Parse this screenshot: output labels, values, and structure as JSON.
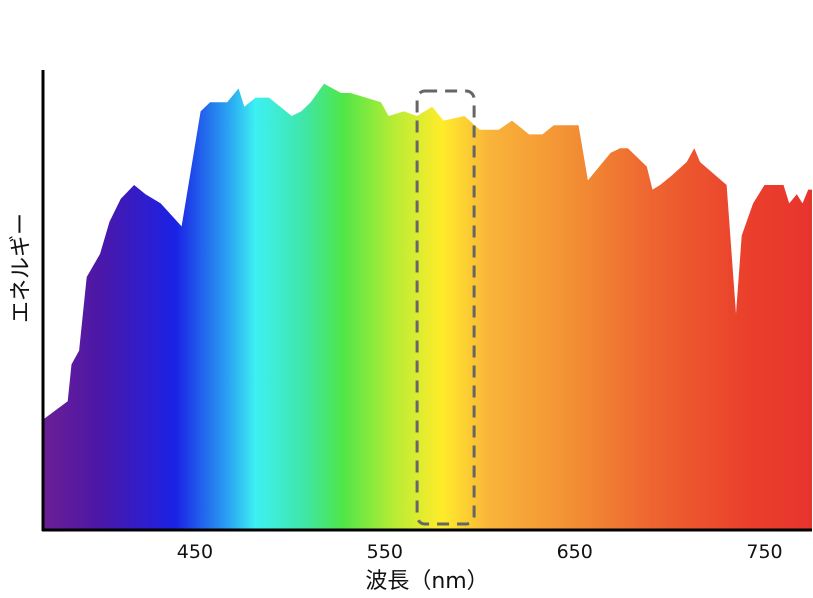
{
  "chart_data": {
    "type": "area",
    "title": "",
    "xlabel": "波長（nm）",
    "ylabel": "エネルギー",
    "xlim": [
      370,
      775
    ],
    "ylim": [
      0,
      100
    ],
    "xticks": [
      450,
      550,
      650,
      750
    ],
    "grid": false,
    "legend": "none",
    "fill": "visible-spectrum-gradient",
    "highlight": {
      "type": "dashed-rectangle",
      "x_range": [
        567,
        597
      ],
      "stroke": "#666666"
    },
    "gradient_stops": [
      {
        "nm": 370,
        "color": "#6b1f94"
      },
      {
        "nm": 400,
        "color": "#4b17a8"
      },
      {
        "nm": 440,
        "color": "#1a22e6"
      },
      {
        "nm": 468,
        "color": "#2aa5f2"
      },
      {
        "nm": 482,
        "color": "#3df0f2"
      },
      {
        "nm": 508,
        "color": "#3fe6a6"
      },
      {
        "nm": 528,
        "color": "#4fe648"
      },
      {
        "nm": 555,
        "color": "#b8ec35"
      },
      {
        "nm": 580,
        "color": "#ffec2a"
      },
      {
        "nm": 605,
        "color": "#f9b43a"
      },
      {
        "nm": 650,
        "color": "#f28e34"
      },
      {
        "nm": 690,
        "color": "#ee6530"
      },
      {
        "nm": 740,
        "color": "#ea402c"
      },
      {
        "nm": 775,
        "color": "#e8342d"
      }
    ],
    "series": [
      {
        "x": [
          370,
          383,
          385,
          389,
          393,
          400,
          405,
          411,
          418,
          424,
          432,
          443,
          453,
          458,
          467,
          473,
          476,
          482,
          489,
          501,
          506,
          511,
          518,
          527,
          532,
          548,
          552,
          560,
          567,
          575,
          581,
          592,
          600,
          610,
          617,
          626,
          633,
          639,
          643,
          652,
          657,
          669,
          674,
          678,
          688,
          691,
          695,
          701,
          709,
          713,
          716,
          730,
          735,
          738,
          744,
          750,
          760,
          763,
          767,
          770,
          773,
          775
        ],
        "y": [
          24,
          28,
          36,
          39,
          55,
          60,
          67,
          72,
          75,
          73,
          71,
          66,
          91,
          93,
          93,
          96,
          92,
          94,
          94,
          90,
          91,
          93,
          97,
          95,
          95,
          93,
          90,
          91,
          90,
          92,
          89,
          90,
          87,
          87,
          89,
          86,
          86,
          88,
          88,
          88,
          76,
          82,
          83,
          83,
          79,
          74,
          75,
          77,
          80,
          83,
          80,
          75,
          47,
          64,
          71,
          75,
          75,
          71,
          73,
          71,
          74,
          74
        ]
      }
    ]
  }
}
